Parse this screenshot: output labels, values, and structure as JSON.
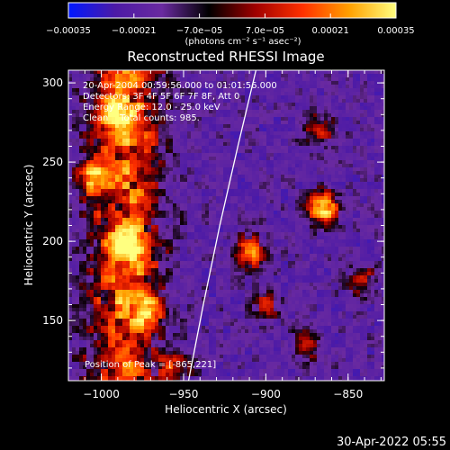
{
  "chart_data": {
    "type": "heatmap",
    "title": "Reconstructed RHESSI Image",
    "xlabel": "Heliocentric X (arcsec)",
    "ylabel": "Heliocentric Y (arcsec)",
    "xlim": [
      -1020,
      -828
    ],
    "ylim": [
      112,
      308
    ],
    "x_ticks": [
      -1000,
      -950,
      -900,
      -850
    ],
    "x_tick_labels": [
      "−1000",
      "−950",
      "−900",
      "−850"
    ],
    "y_ticks": [
      150,
      200,
      250,
      300
    ],
    "y_tick_labels": [
      "150",
      "200",
      "250",
      "300"
    ],
    "colorbar": {
      "label": "(photons cm⁻² s⁻¹ asec⁻²)",
      "range": [
        -0.00035,
        0.00035
      ],
      "tick_labels": [
        "−0.00035",
        "−0.00021",
        "−7.0e−05",
        "7.0e−05",
        "0.00021",
        "0.00035"
      ],
      "colors": [
        "#0018ff",
        "#4c1aa6",
        "#6a2aa0",
        "#000000",
        "#a00000",
        "#ff3000",
        "#ffa000",
        "#ffff80"
      ]
    },
    "annotations": [
      "20-Apr-2004 00:59:56.000 to 01:01:56.000",
      "Detectors: 3F 4F 5F 6F 7F 8F, Att 0",
      "Energy Range: 12.0 - 25.0 keV",
      "Clean    Total counts: 985.",
      "Position of Peak = [-865,221]"
    ],
    "peak": {
      "x": -865,
      "y": 221
    },
    "limb_curve": [
      {
        "x": -947,
        "y": 112
      },
      {
        "x": -938,
        "y": 160
      },
      {
        "x": -928,
        "y": 210
      },
      {
        "x": -917,
        "y": 260
      },
      {
        "x": -906,
        "y": 308
      }
    ],
    "sources": [
      {
        "x": -865,
        "y": 221,
        "intensity": 1.0
      },
      {
        "x": -910,
        "y": 193,
        "intensity": 0.8
      },
      {
        "x": -1005,
        "y": 240,
        "intensity": 0.7
      },
      {
        "x": -985,
        "y": 200,
        "intensity": 0.6
      },
      {
        "x": -992,
        "y": 278,
        "intensity": 0.55
      },
      {
        "x": -972,
        "y": 155,
        "intensity": 0.6
      },
      {
        "x": -955,
        "y": 120,
        "intensity": 0.5
      },
      {
        "x": -868,
        "y": 270,
        "intensity": 0.55
      },
      {
        "x": -842,
        "y": 175,
        "intensity": 0.5
      },
      {
        "x": -875,
        "y": 135,
        "intensity": 0.45
      },
      {
        "x": -900,
        "y": 160,
        "intensity": 0.4
      }
    ]
  },
  "footer": {
    "timestamp": "30-Apr-2022 05:55"
  }
}
